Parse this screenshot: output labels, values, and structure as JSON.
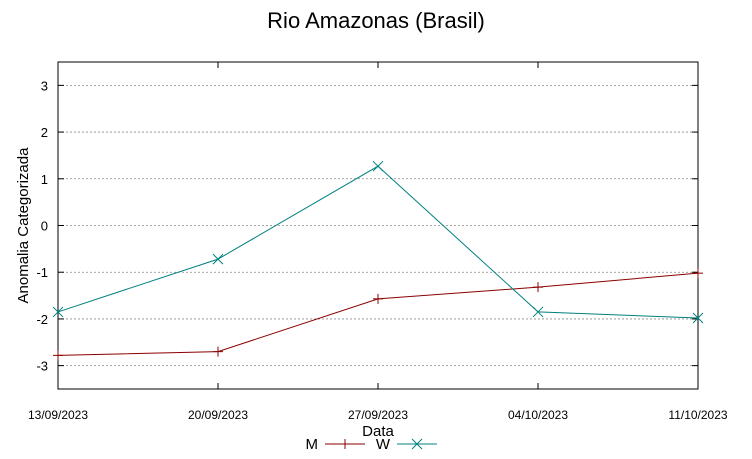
{
  "chart_data": {
    "type": "line",
    "title": "Rio Amazonas (Brasil)",
    "xlabel": "Data",
    "ylabel": "Anomalia Categorizada",
    "categories": [
      "13/09/2023",
      "20/09/2023",
      "27/09/2023",
      "04/10/2023",
      "11/10/2023"
    ],
    "ylim": [
      -3.5,
      3.5
    ],
    "yticks": [
      3,
      2,
      1,
      0,
      -1,
      -2,
      -3
    ],
    "grid": true,
    "legend_position": "bottom-center",
    "series": [
      {
        "name": "M",
        "color": "#8b0000",
        "marker": "plus",
        "values": [
          -2.78,
          -2.7,
          -1.57,
          -1.32,
          -1.02
        ]
      },
      {
        "name": "W",
        "color": "#008080",
        "marker": "cross",
        "values": [
          -1.85,
          -0.72,
          1.27,
          -1.85,
          -1.98
        ]
      }
    ]
  }
}
